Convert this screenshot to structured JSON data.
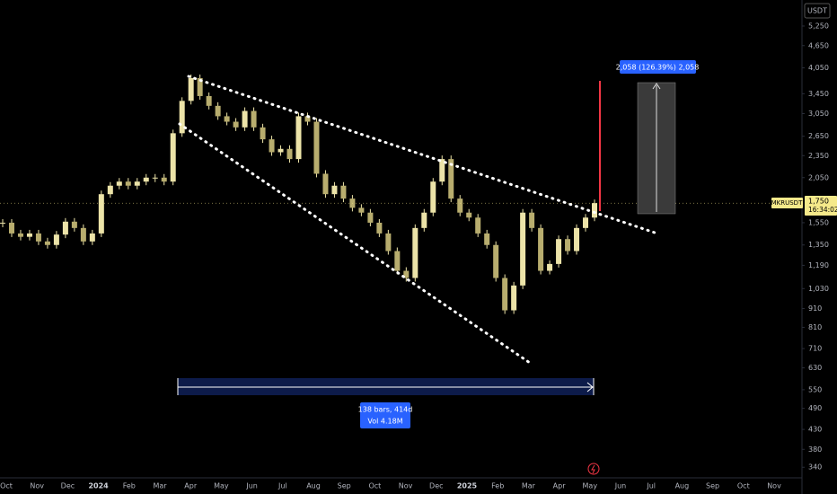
{
  "chart_data": {
    "type": "candlestick",
    "symbol": "MKRUSDT",
    "currency": "USDT",
    "last_price": {
      "value": 1750,
      "label": "1,750"
    },
    "countdown": "16:34:02",
    "color": "#ece3a8",
    "log_scale": true,
    "ylim": [
      322,
      6170
    ],
    "yticks": [
      {
        "value": 5250,
        "label": "5,250"
      },
      {
        "value": 4650,
        "label": "4,650"
      },
      {
        "value": 4050,
        "label": "4,050"
      },
      {
        "value": 3450,
        "label": "3,450"
      },
      {
        "value": 3050,
        "label": "3,050"
      },
      {
        "value": 2650,
        "label": "2,650"
      },
      {
        "value": 2350,
        "label": "2,350"
      },
      {
        "value": 2050,
        "label": "2,050"
      },
      {
        "value": 1550,
        "label": "1,550"
      },
      {
        "value": 1350,
        "label": "1,350"
      },
      {
        "value": 1190,
        "label": "1,190"
      },
      {
        "value": 1030,
        "label": "1,030"
      },
      910,
      810,
      710,
      630,
      550,
      490,
      430,
      380,
      340
    ],
    "x_labels": [
      "Oct",
      "Nov",
      "Dec",
      "2024",
      "Feb",
      "Mar",
      "Apr",
      "May",
      "Jun",
      "Jul",
      "Aug",
      "Sep",
      "Oct",
      "Nov",
      "Dec",
      "2025",
      "Feb",
      "Mar",
      "Apr",
      "May",
      "Jun",
      "Jul",
      "Aug",
      "Sep",
      "Oct",
      "Nov"
    ],
    "closes": [
      1550,
      1450,
      1420,
      1450,
      1380,
      1350,
      1440,
      1560,
      1500,
      1380,
      1450,
      1850,
      1950,
      2000,
      1950,
      2000,
      2050,
      2050,
      2000,
      2700,
      3300,
      3800,
      3400,
      3200,
      3000,
      2900,
      2800,
      3100,
      2800,
      2600,
      2400,
      2450,
      2300,
      3000,
      2900,
      2100,
      1850,
      1950,
      1800,
      1700,
      1650,
      1550,
      1450,
      1300,
      1150,
      1100,
      1500,
      1650,
      2000,
      2300,
      1800,
      1650,
      1600,
      1450,
      1350,
      1100,
      900,
      1050,
      1650,
      1500,
      1150,
      1200,
      1400,
      1300,
      1500,
      1600,
      1750
    ],
    "measure_label": "2,058 (126.39%) 2,058",
    "range_label": [
      "138 bars, 414d",
      "Vol 4.18M"
    ]
  }
}
